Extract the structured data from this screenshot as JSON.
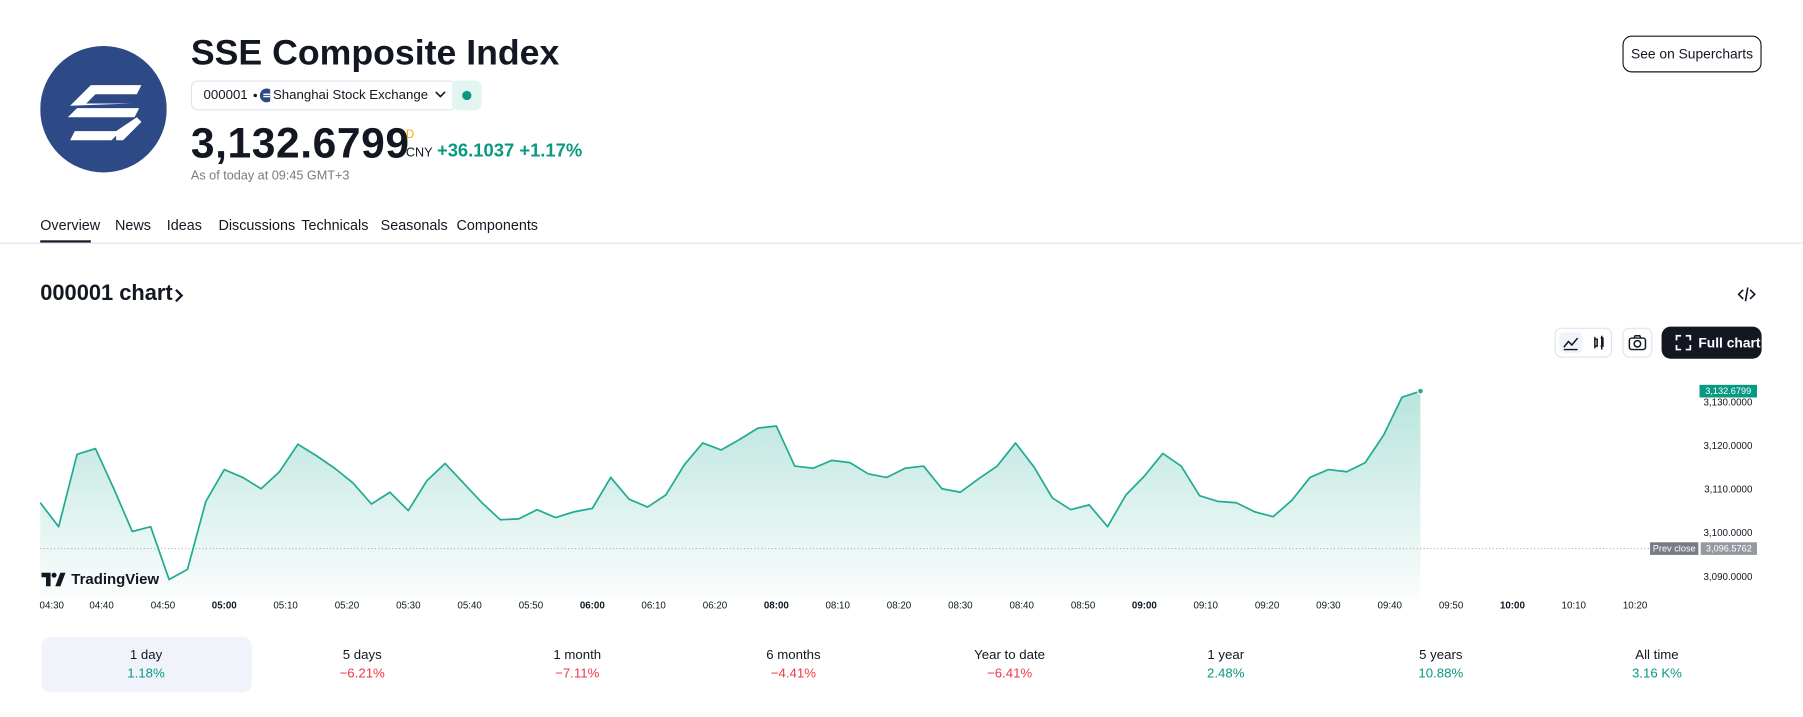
{
  "header": {
    "title": "SSE Composite Index",
    "symbol": "000001",
    "exchange": "Shanghai Stock Exchange",
    "price": "3,132.6799",
    "price_flag": "D",
    "currency": "CNY",
    "change": "+36.1037",
    "change_pct": "+1.17%",
    "as_of": "As of today at 09:45 GMT+3",
    "button": "See on Supercharts"
  },
  "tabs": [
    "Overview",
    "News",
    "Ideas",
    "Discussions",
    "Technicals",
    "Seasonals",
    "Components"
  ],
  "chart_section": {
    "title": "000001 chart",
    "full_chart": "Full chart",
    "brand": "TradingView"
  },
  "chart_data": {
    "type": "area",
    "color": "#22ab94",
    "grid": false,
    "x": [
      "04:30",
      "04:33",
      "04:36",
      "04:39",
      "04:42",
      "04:45",
      "04:48",
      "04:51",
      "04:54",
      "04:57",
      "05:00",
      "05:03",
      "05:06",
      "05:09",
      "05:12",
      "05:15",
      "05:18",
      "05:21",
      "05:24",
      "05:27",
      "05:30",
      "05:33",
      "05:36",
      "05:39",
      "05:42",
      "05:45",
      "05:48",
      "05:51",
      "05:54",
      "05:57",
      "06:00",
      "06:03",
      "06:06",
      "06:09",
      "06:12",
      "06:15",
      "06:18",
      "06:21",
      "06:24",
      "06:27",
      "08:00",
      "08:03",
      "08:06",
      "08:09",
      "08:12",
      "08:15",
      "08:18",
      "08:21",
      "08:24",
      "08:27",
      "08:30",
      "08:33",
      "08:36",
      "08:39",
      "08:42",
      "08:45",
      "08:48",
      "08:51",
      "08:54",
      "08:57",
      "09:00",
      "09:03",
      "09:06",
      "09:09",
      "09:12",
      "09:15",
      "09:18",
      "09:21",
      "09:24",
      "09:27",
      "09:30",
      "09:33",
      "09:36",
      "09:39",
      "09:42",
      "09:45"
    ],
    "values": [
      3107.1,
      3101.6,
      3118.2,
      3119.5,
      3110.3,
      3100.5,
      3101.6,
      3089.5,
      3091.8,
      3107.4,
      3114.7,
      3112.9,
      3110.3,
      3114.2,
      3120.5,
      3117.9,
      3115.0,
      3111.6,
      3106.8,
      3109.5,
      3105.3,
      3112.1,
      3116.1,
      3111.6,
      3107.1,
      3103.2,
      3103.4,
      3105.5,
      3103.7,
      3105.0,
      3105.8,
      3112.9,
      3107.9,
      3106.1,
      3108.9,
      3115.8,
      3120.8,
      3119.2,
      3121.6,
      3124.2,
      3124.7,
      3115.5,
      3115.0,
      3116.8,
      3116.3,
      3113.7,
      3112.9,
      3115.0,
      3115.5,
      3110.3,
      3109.5,
      3112.6,
      3115.5,
      3120.8,
      3115.3,
      3108.2,
      3105.5,
      3106.6,
      3101.6,
      3108.9,
      3113.2,
      3118.4,
      3115.5,
      3108.7,
      3107.4,
      3107.1,
      3105.0,
      3103.9,
      3107.6,
      3112.9,
      3114.7,
      3114.2,
      3116.3,
      3122.6,
      3131.3,
      3132.6799
    ],
    "xlim": [
      "04:30",
      "10:20"
    ],
    "xticks": [
      "04:30",
      "04:40",
      "04:50",
      "05:00",
      "05:10",
      "05:20",
      "05:30",
      "05:40",
      "05:50",
      "06:00",
      "06:10",
      "06:20",
      "08:00",
      "08:10",
      "08:20",
      "08:30",
      "08:40",
      "08:50",
      "09:00",
      "09:10",
      "09:20",
      "09:30",
      "09:40",
      "09:50",
      "10:00",
      "10:10",
      "10:20"
    ],
    "ylim": [
      3085,
      3138
    ],
    "yticks": [
      {
        "value": 3090,
        "label": "3,090.0000"
      },
      {
        "value": 3100,
        "label": "3,100.0000"
      },
      {
        "value": 3110,
        "label": "3,110.0000"
      },
      {
        "value": 3120,
        "label": "3,120.0000"
      },
      {
        "value": 3130,
        "label": "3,130.0000"
      }
    ],
    "prev_close": {
      "value": 3096.5762,
      "label": "3,096.5762",
      "text": "Prev close"
    }
  },
  "periods": [
    {
      "label": "1 day",
      "change": "1.18%"
    },
    {
      "label": "5 days",
      "change": "−6.21%"
    },
    {
      "label": "1 month",
      "change": "−7.11%"
    },
    {
      "label": "6 months",
      "change": "−4.41%"
    },
    {
      "label": "Year to date",
      "change": "−6.41%"
    },
    {
      "label": "1 year",
      "change": "2.48%"
    },
    {
      "label": "5 years",
      "change": "10.88%"
    },
    {
      "label": "All time",
      "change": "3.16 K%"
    }
  ]
}
